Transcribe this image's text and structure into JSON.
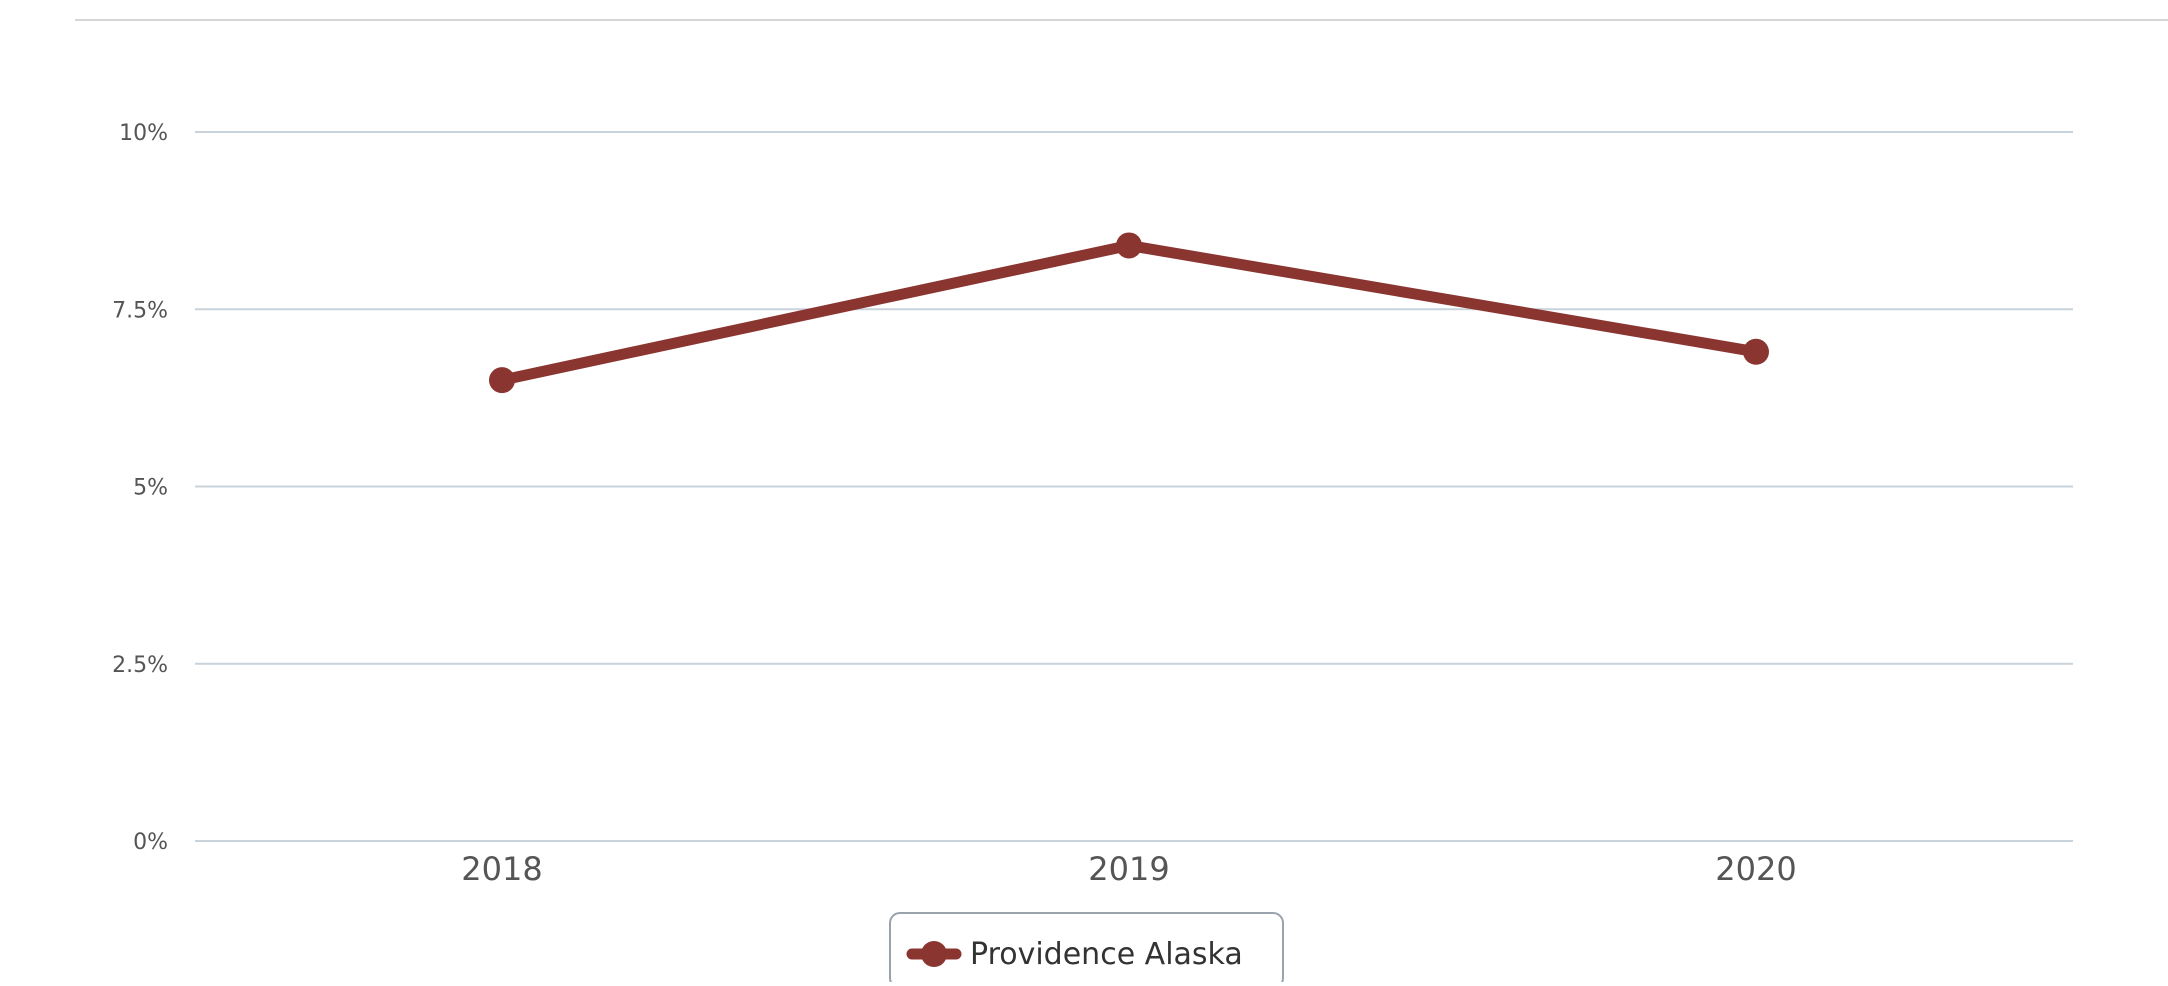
{
  "chart_data": {
    "type": "line",
    "title": "",
    "xlabel": "",
    "ylabel": "",
    "categories": [
      "2018",
      "2019",
      "2020"
    ],
    "series": [
      {
        "name": "Providence Alaska",
        "values": [
          6.5,
          8.4,
          6.9
        ],
        "color": "#8b3531"
      }
    ],
    "ylim": [
      0,
      10
    ],
    "yticks": [
      0,
      2.5,
      5,
      7.5,
      10
    ],
    "ytick_labels": [
      "0%",
      "2.5%",
      "5%",
      "7.5%",
      "10%"
    ],
    "grid": true,
    "legend_position": "bottom-center"
  },
  "colors": {
    "grid": "#c9d3dc",
    "axis_text": "#555555",
    "legend_border": "#9aa3ab",
    "top_rule": "#d6d6d6"
  }
}
